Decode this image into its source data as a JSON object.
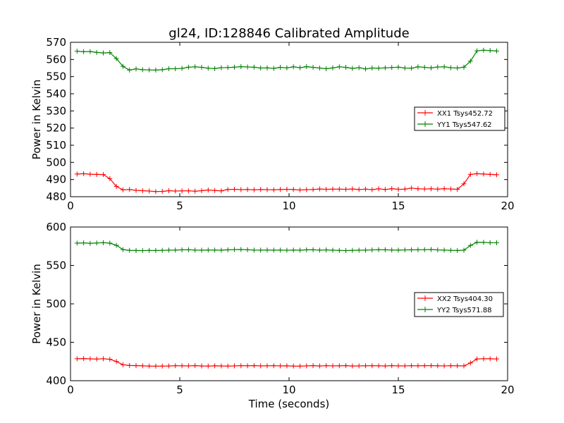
{
  "title": "gl24, ID:128846 Calibrated Amplitude",
  "chart_data": [
    {
      "type": "line",
      "title": "gl24, ID:128846 Calibrated Amplitude",
      "xlabel": "",
      "ylabel": "Power in Kelvin",
      "xlim": [
        0,
        20
      ],
      "ylim": [
        480,
        570
      ],
      "xticks": [
        0,
        5,
        10,
        15,
        20
      ],
      "yticks": [
        480,
        490,
        500,
        510,
        520,
        530,
        540,
        550,
        560,
        570
      ],
      "grid": false,
      "legend_position": "center-right",
      "x": [
        0.3,
        0.6,
        0.9,
        1.2,
        1.5,
        1.8,
        2.1,
        2.4,
        2.7,
        3.0,
        3.3,
        3.6,
        3.9,
        4.2,
        4.5,
        4.8,
        5.1,
        5.4,
        5.7,
        6.0,
        6.3,
        6.6,
        6.9,
        7.2,
        7.5,
        7.8,
        8.1,
        8.4,
        8.7,
        9.0,
        9.3,
        9.6,
        9.9,
        10.2,
        10.5,
        10.8,
        11.1,
        11.4,
        11.7,
        12.0,
        12.3,
        12.6,
        12.9,
        13.2,
        13.5,
        13.8,
        14.1,
        14.4,
        14.7,
        15.0,
        15.3,
        15.6,
        15.9,
        16.2,
        16.5,
        16.8,
        17.1,
        17.4,
        17.7,
        18.0,
        18.3,
        18.6,
        18.9,
        19.2,
        19.5
      ],
      "series": [
        {
          "name": "XX1 Tsys452.72",
          "color": "#ff0000",
          "values": [
            493.2,
            493.4,
            493.1,
            493.0,
            492.9,
            490.5,
            486.0,
            484.0,
            484.2,
            483.7,
            483.5,
            483.3,
            483.0,
            483.1,
            483.5,
            483.3,
            483.4,
            483.4,
            483.2,
            483.5,
            483.9,
            483.6,
            483.4,
            484.2,
            484.3,
            484.1,
            484.2,
            484.0,
            484.2,
            484.1,
            484.0,
            484.2,
            484.3,
            484.2,
            483.9,
            484.1,
            484.2,
            484.5,
            484.3,
            484.4,
            484.4,
            484.3,
            484.5,
            484.2,
            484.4,
            484.1,
            484.6,
            484.2,
            484.7,
            484.3,
            484.4,
            485.0,
            484.6,
            484.5,
            484.6,
            484.4,
            484.7,
            484.5,
            484.3,
            487.5,
            493.0,
            493.4,
            493.2,
            493.0,
            492.8
          ]
        },
        {
          "name": "YY1 Tsys547.62",
          "color": "#008000",
          "values": [
            564.8,
            564.5,
            564.6,
            564.1,
            563.8,
            564.0,
            560.5,
            556.0,
            553.8,
            554.5,
            554.0,
            553.9,
            553.8,
            554.0,
            554.6,
            554.6,
            554.8,
            555.5,
            555.7,
            555.4,
            554.9,
            554.7,
            555.2,
            555.3,
            555.5,
            555.8,
            555.6,
            555.5,
            555.0,
            555.1,
            554.8,
            555.4,
            555.1,
            555.7,
            555.2,
            555.8,
            555.4,
            555.0,
            554.6,
            555.1,
            555.7,
            555.4,
            554.8,
            555.2,
            554.5,
            555.0,
            554.9,
            555.1,
            555.3,
            555.5,
            555.0,
            554.9,
            555.7,
            555.4,
            555.1,
            555.6,
            555.7,
            555.2,
            555.0,
            555.5,
            559.0,
            565.0,
            565.4,
            565.2,
            564.9
          ]
        }
      ]
    },
    {
      "type": "line",
      "title": "",
      "xlabel": "Time (seconds)",
      "ylabel": "Power in Kelvin",
      "xlim": [
        0,
        20
      ],
      "ylim": [
        400,
        600
      ],
      "xticks": [
        0,
        5,
        10,
        15,
        20
      ],
      "yticks": [
        400,
        450,
        500,
        550,
        600
      ],
      "grid": false,
      "legend_position": "center-right",
      "x": [
        0.3,
        0.6,
        0.9,
        1.2,
        1.5,
        1.8,
        2.1,
        2.4,
        2.7,
        3.0,
        3.3,
        3.6,
        3.9,
        4.2,
        4.5,
        4.8,
        5.1,
        5.4,
        5.7,
        6.0,
        6.3,
        6.6,
        6.9,
        7.2,
        7.5,
        7.8,
        8.1,
        8.4,
        8.7,
        9.0,
        9.3,
        9.6,
        9.9,
        10.2,
        10.5,
        10.8,
        11.1,
        11.4,
        11.7,
        12.0,
        12.3,
        12.6,
        12.9,
        13.2,
        13.5,
        13.8,
        14.1,
        14.4,
        14.7,
        15.0,
        15.3,
        15.6,
        15.9,
        16.2,
        16.5,
        16.8,
        17.1,
        17.4,
        17.7,
        18.0,
        18.3,
        18.6,
        18.9,
        19.2,
        19.5
      ],
      "series": [
        {
          "name": "XX2 Tsys404.30",
          "color": "#ff0000",
          "values": [
            428.6,
            428.8,
            428.4,
            428.2,
            428.6,
            427.9,
            425.0,
            420.8,
            419.8,
            419.6,
            419.4,
            419.0,
            418.9,
            419.0,
            419.2,
            419.5,
            419.4,
            419.3,
            419.6,
            419.2,
            419.0,
            419.4,
            419.2,
            419.0,
            419.3,
            419.5,
            419.4,
            419.6,
            419.3,
            419.4,
            419.5,
            419.3,
            419.4,
            419.0,
            418.9,
            419.3,
            419.6,
            419.2,
            419.5,
            419.3,
            419.4,
            419.6,
            419.2,
            419.3,
            419.4,
            419.5,
            419.4,
            419.2,
            419.6,
            419.3,
            419.3,
            419.5,
            419.4,
            419.5,
            419.6,
            419.4,
            419.3,
            419.5,
            419.4,
            419.3,
            423.0,
            428.3,
            428.6,
            428.5,
            428.3
          ]
        },
        {
          "name": "YY2 Tsys571.88",
          "color": "#008000",
          "values": [
            579.0,
            579.4,
            578.8,
            579.2,
            579.6,
            579.0,
            576.2,
            570.6,
            569.6,
            569.4,
            569.3,
            569.5,
            569.4,
            569.6,
            569.9,
            570.0,
            570.3,
            570.5,
            570.0,
            569.8,
            570.1,
            570.0,
            569.8,
            570.3,
            570.6,
            570.7,
            570.4,
            570.0,
            569.9,
            570.1,
            569.9,
            570.0,
            569.7,
            570.0,
            569.8,
            570.3,
            570.4,
            569.9,
            570.2,
            569.8,
            569.5,
            569.3,
            569.6,
            569.8,
            569.9,
            570.2,
            570.5,
            570.4,
            570.1,
            570.0,
            570.2,
            570.3,
            570.4,
            570.5,
            570.7,
            570.2,
            570.0,
            569.6,
            569.4,
            569.8,
            576.0,
            580.2,
            580.0,
            579.6,
            579.5
          ]
        }
      ]
    }
  ]
}
